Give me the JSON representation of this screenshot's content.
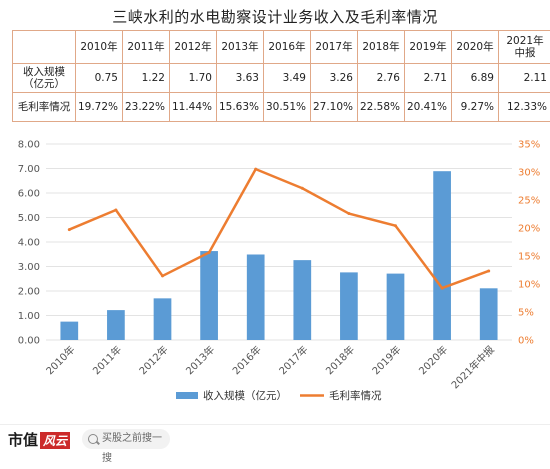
{
  "title": "三峡水利的水电勘察设计业务收入及毛利率情况",
  "table": {
    "headers": [
      "",
      "2010年",
      "2011年",
      "2012年",
      "2013年",
      "2016年",
      "2017年",
      "2018年",
      "2019年",
      "2020年",
      "2021年\n中报"
    ],
    "rows": [
      {
        "label": "收入规模\n（亿元）",
        "values": [
          "0.75",
          "1.22",
          "1.70",
          "3.63",
          "3.49",
          "3.26",
          "2.76",
          "2.71",
          "6.89",
          "2.11"
        ]
      },
      {
        "label": "毛利率情况",
        "values": [
          "19.72%",
          "23.22%",
          "11.44%",
          "15.63%",
          "30.51%",
          "27.10%",
          "22.58%",
          "20.41%",
          "9.27%",
          "12.33%"
        ]
      }
    ]
  },
  "chart_data": {
    "type": "bar+line",
    "categories": [
      "2010年",
      "2011年",
      "2012年",
      "2013年",
      "2016年",
      "2017年",
      "2018年",
      "2019年",
      "2020年",
      "2021年中报"
    ],
    "series": [
      {
        "name": "收入规模（亿元）",
        "type": "bar",
        "axis": "left",
        "color": "#5b9bd5",
        "values": [
          0.75,
          1.22,
          1.7,
          3.63,
          3.49,
          3.26,
          2.76,
          2.71,
          6.89,
          2.11
        ]
      },
      {
        "name": "毛利率情况",
        "type": "line",
        "axis": "right",
        "color": "#ed7d31",
        "values": [
          19.72,
          23.22,
          11.44,
          15.63,
          30.51,
          27.1,
          22.58,
          20.41,
          9.27,
          12.33
        ]
      }
    ],
    "y_left": {
      "min": 0,
      "max": 8,
      "ticks": [
        "0.00",
        "1.00",
        "2.00",
        "3.00",
        "4.00",
        "5.00",
        "6.00",
        "7.00",
        "8.00"
      ]
    },
    "y_right": {
      "min": 0,
      "max": 35,
      "ticks": [
        "0%",
        "5%",
        "10%",
        "15%",
        "20%",
        "25%",
        "30%",
        "35%"
      ]
    },
    "grid": true,
    "legend_position": "bottom"
  },
  "footer": {
    "brand": "市值",
    "brand_badge": "风云",
    "search_placeholder": "买股之前搜一搜"
  }
}
